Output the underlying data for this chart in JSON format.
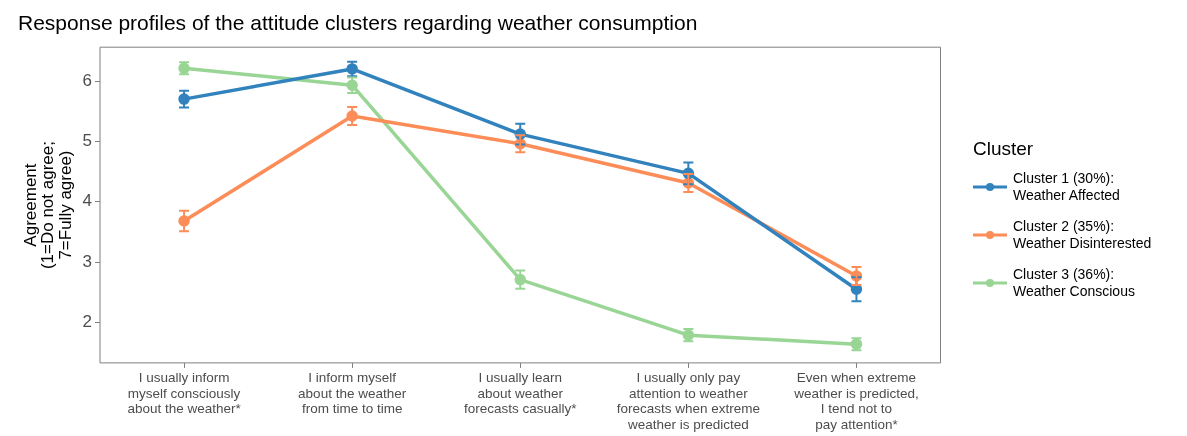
{
  "chart_data": {
    "type": "line",
    "title": "Response profiles of the attitude clusters regarding weather consumption",
    "ylabel": "Agreement\n(1=Do not agree;\n7=Fully agree)",
    "legend_title": "Cluster",
    "categories": [
      "I usually inform\nmyself consciously\nabout the weather*",
      "I inform myself\nabout the weather\nfrom time to time",
      "I usually learn\nabout weather\nforecasts casually*",
      "I usually only pay\nattention to weather\nforecasts when extreme\nweather is predicted",
      "Even when extreme\nweather is predicted,\nI tend not to\npay attention*"
    ],
    "series": [
      {
        "name": "Cluster 1 (30%):\nWeather Affected",
        "color": "#3182bd",
        "values": [
          5.7,
          6.2,
          5.12,
          4.47,
          2.55
        ],
        "errors": [
          0.14,
          0.12,
          0.17,
          0.18,
          0.2
        ]
      },
      {
        "name": "Cluster 2 (35%):\nWeather Disinterested",
        "color": "#fc8d59",
        "values": [
          3.68,
          5.42,
          4.96,
          4.31,
          2.77
        ],
        "errors": [
          0.17,
          0.15,
          0.14,
          0.15,
          0.15
        ]
      },
      {
        "name": "Cluster 3 (36%):\nWeather Conscious",
        "color": "#99d594",
        "values": [
          6.21,
          5.93,
          2.71,
          1.79,
          1.64
        ],
        "errors": [
          0.1,
          0.13,
          0.15,
          0.1,
          0.1
        ]
      }
    ],
    "ylim": [
      1.33,
      6.56
    ],
    "yticks": [
      2,
      3,
      4,
      5,
      6
    ],
    "grid": false,
    "legend": "right",
    "marker": "circle",
    "line_style": "solid"
  }
}
